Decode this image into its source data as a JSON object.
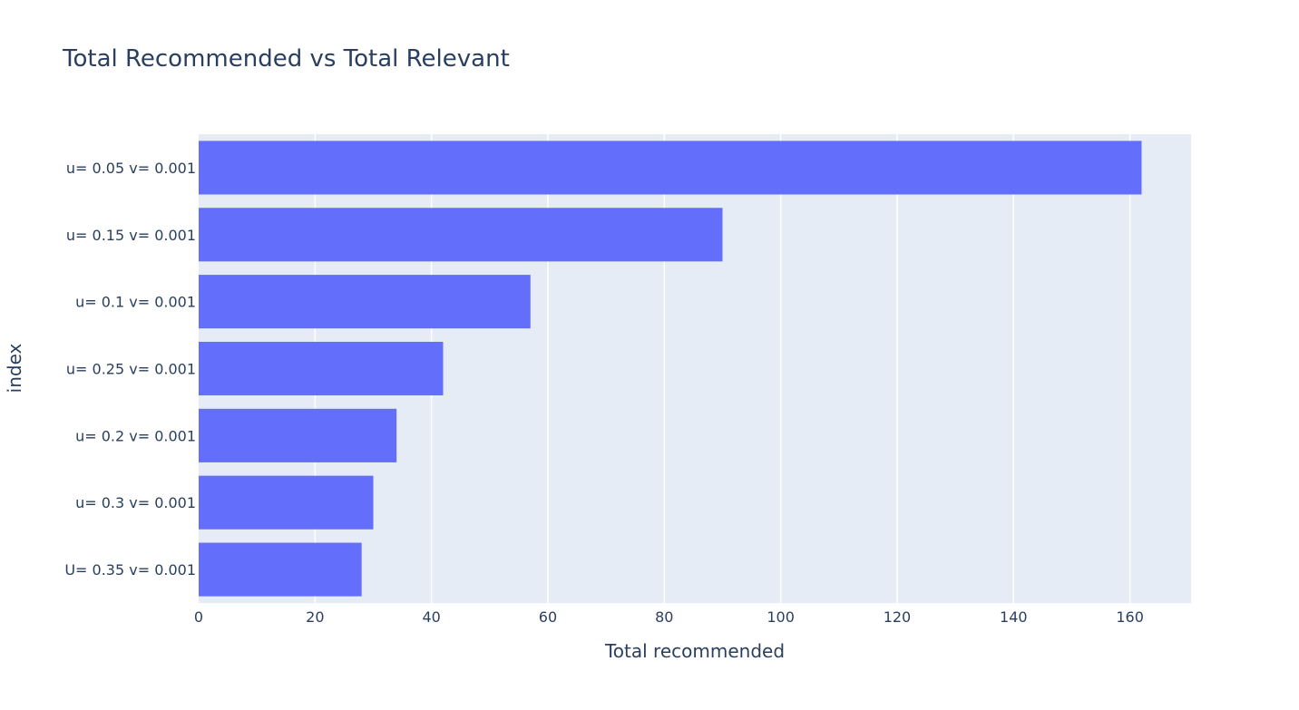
{
  "chart_data": {
    "type": "bar",
    "orientation": "horizontal",
    "title": "Total Recommended vs Total Relevant",
    "xlabel": "Total recommended",
    "ylabel": "index",
    "categories": [
      "u= 0.05 v= 0.001",
      "u= 0.15 v= 0.001",
      "u= 0.1 v= 0.001",
      "u= 0.25 v= 0.001",
      "u= 0.2 v= 0.001",
      "u= 0.3 v= 0.001",
      "U= 0.35 v= 0.001"
    ],
    "values": [
      162,
      90,
      57,
      42,
      34,
      30,
      28
    ],
    "xlim": [
      0,
      170.5
    ],
    "xticks": [
      0,
      20,
      40,
      60,
      80,
      100,
      120,
      140,
      160
    ],
    "grid": true,
    "colors": {
      "bar": "#636efa",
      "plot_background": "#e5ecf6",
      "grid": "#ffffff",
      "text": "#2a3f5f"
    }
  }
}
